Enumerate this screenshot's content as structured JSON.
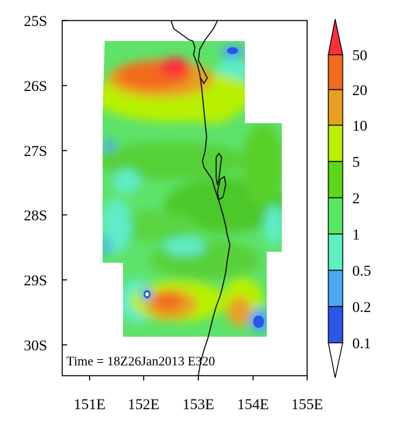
{
  "map": {
    "annotation": "Time = 18Z26Jan2013 E320",
    "lat_ticks": [
      "25S",
      "26S",
      "27S",
      "28S",
      "29S",
      "30S"
    ],
    "lon_ticks": [
      "151E",
      "152E",
      "153E",
      "154E",
      "155E"
    ],
    "extent": {
      "lon": [
        150.55,
        155.0
      ],
      "lat": [
        -30.45,
        -25.0
      ]
    }
  },
  "colorbar": {
    "labels": [
      "50",
      "20",
      "10",
      "5",
      "2",
      "1",
      "0.5",
      "0.2",
      "0.1"
    ],
    "colors": [
      "#ff2f3a",
      "#f26a1b",
      "#e8a020",
      "#b8f000",
      "#5ed61a",
      "#58e860",
      "#5ef0c0",
      "#4ca8f0",
      "#2c56e8"
    ],
    "open_ended": {
      "top": true,
      "bottom": true
    }
  }
}
